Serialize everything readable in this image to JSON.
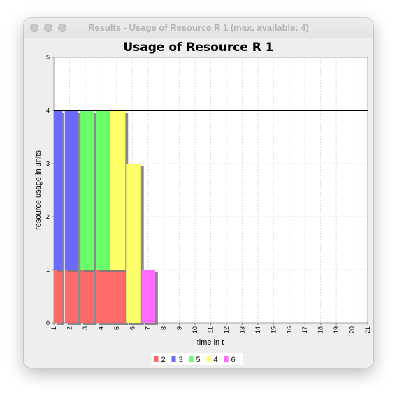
{
  "window": {
    "title": "Results - Usage of Resource R 1 (max. available: 4)"
  },
  "chart_data": {
    "type": "bar",
    "title": "Usage of Resource R 1",
    "xlabel": "time in t",
    "ylabel": "resource usage in units",
    "xlim": [
      1,
      21
    ],
    "ylim": [
      0,
      5
    ],
    "x_ticks": [
      "1",
      "2",
      "3",
      "4",
      "5",
      "6",
      "7",
      "8",
      "9",
      "10",
      "11",
      "12",
      "13",
      "14",
      "15",
      "16",
      "17",
      "18",
      "19",
      "20",
      "21"
    ],
    "y_ticks": [
      "0",
      "1",
      "2",
      "3",
      "4",
      "5"
    ],
    "grid": true,
    "capacity_line": 4,
    "series": [
      {
        "name": "2",
        "color": "#ff6b6b",
        "bars": [
          {
            "start": 1,
            "end": 1.6,
            "bottom": 0,
            "top": 1
          },
          {
            "start": 1.7,
            "end": 2.6,
            "bottom": 0,
            "top": 1
          },
          {
            "start": 2.7,
            "end": 3.6,
            "bottom": 0,
            "top": 1
          },
          {
            "start": 3.7,
            "end": 4.6,
            "bottom": 0,
            "top": 1
          },
          {
            "start": 4.6,
            "end": 5.6,
            "bottom": 0,
            "top": 1
          }
        ]
      },
      {
        "name": "3",
        "color": "#6b6bff",
        "bars": [
          {
            "start": 1,
            "end": 1.6,
            "bottom": 1,
            "top": 4
          },
          {
            "start": 1.7,
            "end": 2.6,
            "bottom": 1,
            "top": 4
          }
        ]
      },
      {
        "name": "5",
        "color": "#6bff6b",
        "bars": [
          {
            "start": 2.7,
            "end": 3.6,
            "bottom": 1,
            "top": 4
          },
          {
            "start": 3.7,
            "end": 4.6,
            "bottom": 1,
            "top": 4
          }
        ]
      },
      {
        "name": "4",
        "color": "#ffff6b",
        "bars": [
          {
            "start": 4.6,
            "end": 5.6,
            "bottom": 1,
            "top": 4
          },
          {
            "start": 5.6,
            "end": 6.6,
            "bottom": 0,
            "top": 3
          }
        ]
      },
      {
        "name": "6",
        "color": "#ff6bff",
        "bars": [
          {
            "start": 6.6,
            "end": 7.5,
            "bottom": 0,
            "top": 1
          }
        ]
      }
    ],
    "legend": {
      "placement": "bottom-center"
    }
  }
}
